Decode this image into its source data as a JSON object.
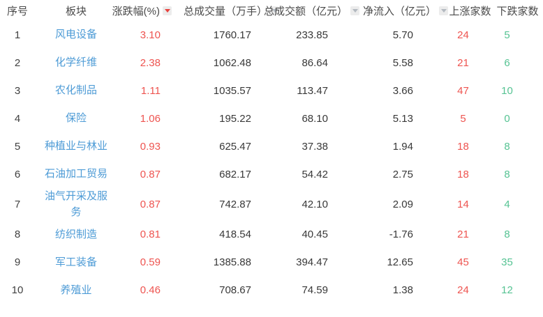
{
  "colors": {
    "background": "#ffffff",
    "header_text": "#4a4a4a",
    "body_text": "#383838",
    "sector_link_blue": "#4d9bd6",
    "rise_red": "#ee5450",
    "fall_green": "#56c393",
    "sort_active_red": "#e8423e",
    "sort_inactive_gray": "#b3b9c0",
    "sort_button_bg": "#ececec"
  },
  "table": {
    "columns": [
      {
        "label": "序号",
        "sort": "none"
      },
      {
        "label": "板块",
        "sort": "none"
      },
      {
        "label": "涨跌幅(%)",
        "sort": "active-desc"
      },
      {
        "label": "总成交量（万手）",
        "sort": "inactive"
      },
      {
        "label": "总成交额（亿元）",
        "sort": "inactive"
      },
      {
        "label": "净流入（亿元）",
        "sort": "inactive"
      },
      {
        "label": "上涨家数",
        "sort": "none"
      },
      {
        "label": "下跌家数",
        "sort": "none"
      }
    ],
    "rows": [
      {
        "rank": "1",
        "sector": "风电设备",
        "change": "3.10",
        "volume": "1760.17",
        "turnover": "233.85",
        "inflow": "5.70",
        "up": "24",
        "down": "5"
      },
      {
        "rank": "2",
        "sector": "化学纤维",
        "change": "2.38",
        "volume": "1062.48",
        "turnover": "86.64",
        "inflow": "5.58",
        "up": "21",
        "down": "6"
      },
      {
        "rank": "3",
        "sector": "农化制品",
        "change": "1.11",
        "volume": "1035.57",
        "turnover": "113.47",
        "inflow": "3.66",
        "up": "47",
        "down": "10"
      },
      {
        "rank": "4",
        "sector": "保险",
        "change": "1.06",
        "volume": "195.22",
        "turnover": "68.10",
        "inflow": "5.13",
        "up": "5",
        "down": "0"
      },
      {
        "rank": "5",
        "sector": "种植业与林业",
        "change": "0.93",
        "volume": "625.47",
        "turnover": "37.38",
        "inflow": "1.94",
        "up": "18",
        "down": "8"
      },
      {
        "rank": "6",
        "sector": "石油加工贸易",
        "change": "0.87",
        "volume": "682.17",
        "turnover": "54.42",
        "inflow": "2.75",
        "up": "18",
        "down": "8"
      },
      {
        "rank": "7",
        "sector": "油气开采及服务",
        "change": "0.87",
        "volume": "742.87",
        "turnover": "42.10",
        "inflow": "2.09",
        "up": "14",
        "down": "4"
      },
      {
        "rank": "8",
        "sector": "纺织制造",
        "change": "0.81",
        "volume": "418.54",
        "turnover": "40.45",
        "inflow": "-1.76",
        "up": "21",
        "down": "8"
      },
      {
        "rank": "9",
        "sector": "军工装备",
        "change": "0.59",
        "volume": "1385.88",
        "turnover": "394.47",
        "inflow": "12.65",
        "up": "45",
        "down": "35"
      },
      {
        "rank": "10",
        "sector": "养殖业",
        "change": "0.46",
        "volume": "708.67",
        "turnover": "74.59",
        "inflow": "1.38",
        "up": "24",
        "down": "12"
      }
    ]
  }
}
